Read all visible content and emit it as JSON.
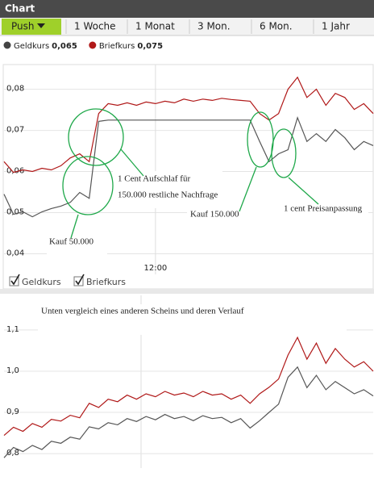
{
  "header": {
    "title": "Chart",
    "tabs": [
      "Push",
      "1 Woche",
      "1 Monat",
      "3 Mon.",
      "6 Mon.",
      "1 Jahr"
    ]
  },
  "quotes": [
    {
      "name": "Geldkurs",
      "value": "0,065",
      "color": "#444444"
    },
    {
      "name": "Briefkurs",
      "value": "0,075",
      "color": "#b01818"
    }
  ],
  "chart_data": [
    {
      "type": "line",
      "categories": [
        null,
        null,
        null,
        null,
        null,
        null,
        null,
        null,
        null,
        null,
        null,
        null,
        null,
        null,
        null,
        null,
        "12:00",
        null,
        null,
        null,
        null,
        null,
        null,
        null,
        null,
        null,
        null,
        null,
        null,
        null,
        null,
        null,
        null,
        null,
        null,
        null,
        null,
        null,
        null,
        null
      ],
      "series": [
        {
          "name": "Geldkurs",
          "color": "#555555",
          "values": [
            0.0545,
            0.0496,
            0.0502,
            0.049,
            0.0502,
            0.051,
            0.0516,
            0.0525,
            0.0549,
            0.0535,
            0.0722,
            0.0725,
            0.0725,
            0.0725,
            0.0725,
            0.0725,
            0.0725,
            0.0725,
            0.0725,
            0.0725,
            0.0725,
            0.0725,
            0.0725,
            0.0725,
            0.0725,
            0.0725,
            0.0725,
            0.0673,
            0.0624,
            0.0643,
            0.0653,
            0.0731,
            0.0673,
            0.0692,
            0.0673,
            0.0702,
            0.0682,
            0.0653,
            0.0673,
            0.0663
          ]
        },
        {
          "name": "Briefkurs",
          "color": "#b01818",
          "values": [
            0.0624,
            0.0598,
            0.0604,
            0.06,
            0.0608,
            0.0604,
            0.0614,
            0.0633,
            0.0643,
            0.0624,
            0.0741,
            0.0765,
            0.0761,
            0.0767,
            0.0761,
            0.0769,
            0.0765,
            0.0771,
            0.0767,
            0.0776,
            0.0771,
            0.0776,
            0.0773,
            0.0778,
            0.0775,
            0.0773,
            0.0771,
            0.0741,
            0.0725,
            0.0741,
            0.08,
            0.0829,
            0.078,
            0.08,
            0.0761,
            0.079,
            0.078,
            0.0751,
            0.0765,
            0.0741
          ]
        }
      ],
      "ylim": [
        0.035,
        0.086
      ],
      "yticks": [
        {
          "value": 0.04,
          "label": "0,04"
        },
        {
          "value": 0.05,
          "label": "0,05"
        },
        {
          "value": 0.06,
          "label": "0,06"
        },
        {
          "value": 0.07,
          "label": "0,07"
        },
        {
          "value": 0.08,
          "label": "0,08"
        }
      ],
      "grid": true,
      "annotations": [
        "1 Cent Aufschlaf für",
        "150.000 restliche Nachfrage",
        "Kauf 50.000",
        "Kauf 150.000",
        "1 cent Preisanpassung"
      ]
    },
    {
      "type": "line",
      "title": "Unten vergleich eines anderen Scheins und deren Verlauf",
      "categories": [
        null,
        null,
        null,
        null,
        null,
        null,
        null,
        null,
        null,
        null,
        null,
        null,
        null,
        null,
        null,
        null,
        null,
        null,
        null,
        null,
        null,
        null,
        null,
        null,
        null,
        null,
        null,
        null,
        null,
        null,
        null,
        null,
        null,
        null,
        null,
        null,
        null,
        null,
        null,
        null
      ],
      "series": [
        {
          "color": "#555555",
          "values": [
            0.79,
            0.815,
            0.805,
            0.82,
            0.81,
            0.83,
            0.825,
            0.84,
            0.835,
            0.865,
            0.86,
            0.875,
            0.87,
            0.885,
            0.878,
            0.89,
            0.882,
            0.895,
            0.885,
            0.89,
            0.88,
            0.892,
            0.885,
            0.888,
            0.875,
            0.885,
            0.862,
            0.88,
            0.9,
            0.92,
            0.985,
            1.01,
            0.96,
            0.99,
            0.955,
            0.975,
            0.96,
            0.945,
            0.955,
            0.94
          ]
        },
        {
          "color": "#b01818",
          "values": [
            0.844,
            0.864,
            0.854,
            0.873,
            0.864,
            0.883,
            0.879,
            0.893,
            0.887,
            0.922,
            0.912,
            0.932,
            0.926,
            0.942,
            0.932,
            0.945,
            0.938,
            0.951,
            0.942,
            0.947,
            0.938,
            0.951,
            0.942,
            0.945,
            0.932,
            0.942,
            0.922,
            0.945,
            0.961,
            0.981,
            1.039,
            1.082,
            1.029,
            1.068,
            1.019,
            1.055,
            1.029,
            1.01,
            1.023,
            1.0
          ]
        }
      ],
      "ylim": [
        0.765,
        1.18
      ],
      "yticks": [
        {
          "value": 0.8,
          "label": "0,8"
        },
        {
          "value": 0.9,
          "label": "0,9"
        },
        {
          "value": 1.0,
          "label": "1,0"
        },
        {
          "value": 1.1,
          "label": "1,1"
        }
      ],
      "grid": true
    }
  ]
}
